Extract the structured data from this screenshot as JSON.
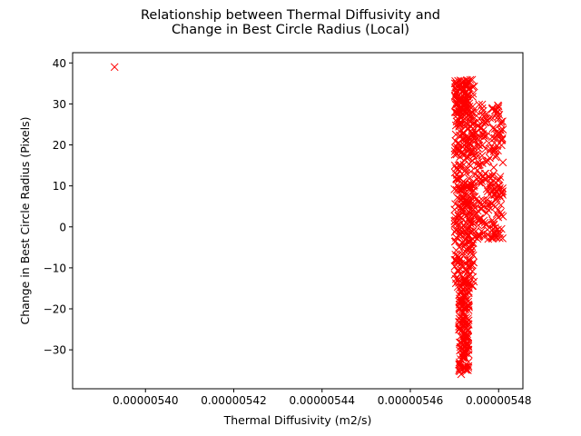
{
  "chart_data": {
    "type": "scatter",
    "title_lines": [
      "Relationship between Thermal Diffusivity and",
      "Change in Best Circle Radius (Local)"
    ],
    "xlabel": "Thermal Diffusivity (m2/s)",
    "ylabel": "Change in Best Circle Radius (Pixels)",
    "xlim": [
      5.3835e-06,
      5.4855e-06
    ],
    "ylim": [
      -39.5,
      42.5
    ],
    "xticks": [
      5.4e-06,
      5.42e-06,
      5.44e-06,
      5.46e-06,
      5.48e-06
    ],
    "xtick_labels": [
      "0.00000540",
      "0.00000542",
      "0.00000544",
      "0.00000546",
      "0.00000548"
    ],
    "yticks": [
      -30,
      -20,
      -10,
      0,
      10,
      20,
      30,
      40
    ],
    "ytick_labels": [
      "−30",
      "−20",
      "−10",
      "0",
      "10",
      "20",
      "30",
      "40"
    ],
    "marker": "x",
    "color": "#ff0000",
    "grid": false,
    "legend": "none",
    "outlier": {
      "x": 5.393e-06,
      "y": 39
    },
    "clusters": [
      {
        "x_range": [
          5.47e-06,
          5.4745e-06
        ],
        "y_range": [
          -15,
          36
        ],
        "count": 430
      },
      {
        "x_range": [
          5.471e-06,
          5.4733e-06
        ],
        "y_range": [
          -36,
          -15
        ],
        "count": 150
      },
      {
        "x_range": [
          5.4745e-06,
          5.481e-06
        ],
        "y_range": [
          -3,
          30
        ],
        "count": 230
      },
      {
        "x_range": [
          5.47e-06,
          5.473e-06
        ],
        "y_range": [
          28,
          36
        ],
        "count": 40
      }
    ]
  }
}
